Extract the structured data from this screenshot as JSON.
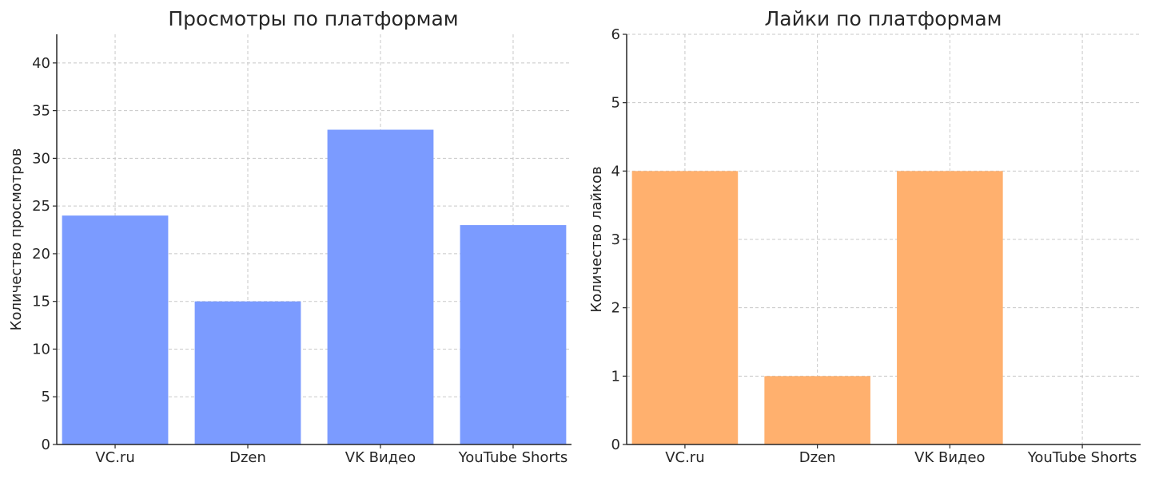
{
  "chart_data": [
    {
      "type": "bar",
      "title": "Просмотры по платформам",
      "xlabel": "",
      "ylabel": "Количество просмотров",
      "categories": [
        "VC.ru",
        "Dzen",
        "VK Видео",
        "YouTube Shorts"
      ],
      "values": [
        24,
        15,
        33,
        23
      ],
      "ylim": [
        0,
        43
      ],
      "yticks": [
        0,
        5,
        10,
        15,
        20,
        25,
        30,
        35,
        40
      ],
      "grid": true,
      "color": "#7b9bff"
    },
    {
      "type": "bar",
      "title": "Лайки по платформам",
      "xlabel": "",
      "ylabel": "Количество лайков",
      "categories": [
        "VC.ru",
        "Dzen",
        "VK Видео",
        "YouTube Shorts"
      ],
      "values": [
        4,
        1,
        4,
        0
      ],
      "ylim": [
        0,
        6
      ],
      "yticks": [
        0,
        1,
        2,
        3,
        4,
        5,
        6
      ],
      "grid": true,
      "color": "#ffb06e"
    }
  ]
}
